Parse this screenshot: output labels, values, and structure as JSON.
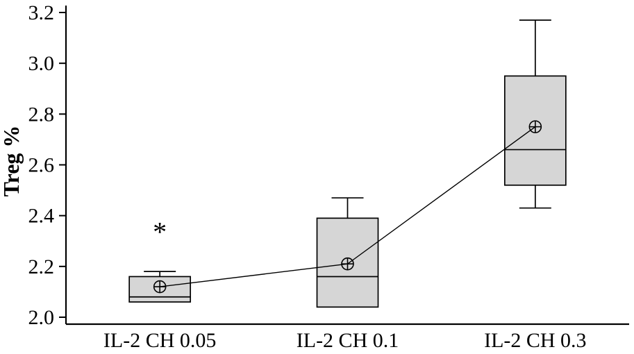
{
  "chart_data": {
    "type": "box",
    "title": "",
    "xlabel": "",
    "ylabel": "Treg %",
    "ylim": [
      2.0,
      3.2
    ],
    "yticks": [
      2.0,
      2.2,
      2.4,
      2.6,
      2.8,
      3.0,
      3.2
    ],
    "ytick_labels": [
      "2.0",
      "2.2",
      "2.4",
      "2.6",
      "2.8",
      "3.0",
      "3.2"
    ],
    "categories": [
      "IL-2 CH 0.05",
      "IL-2 CH 0.1",
      "IL-2 CH 0.3"
    ],
    "boxes": [
      {
        "category": "IL-2 CH 0.05",
        "whisker_low": 2.06,
        "q1": 2.06,
        "median": 2.08,
        "q3": 2.16,
        "whisker_high": 2.18,
        "mean": 2.12,
        "outliers": [
          2.36
        ]
      },
      {
        "category": "IL-2 CH 0.1",
        "whisker_low": 2.04,
        "q1": 2.04,
        "median": 2.16,
        "q3": 2.39,
        "whisker_high": 2.47,
        "mean": 2.21,
        "outliers": []
      },
      {
        "category": "IL-2 CH 0.3",
        "whisker_low": 2.43,
        "q1": 2.52,
        "median": 2.66,
        "q3": 2.95,
        "whisker_high": 3.17,
        "mean": 2.75,
        "outliers": []
      }
    ],
    "show_mean_line": true,
    "mean_marker": "circle-plus",
    "outlier_marker": "*",
    "grid": false,
    "legend": false,
    "colors": {
      "box_fill": "#d6d6d6",
      "stroke": "#000000",
      "background": "#ffffff"
    }
  }
}
